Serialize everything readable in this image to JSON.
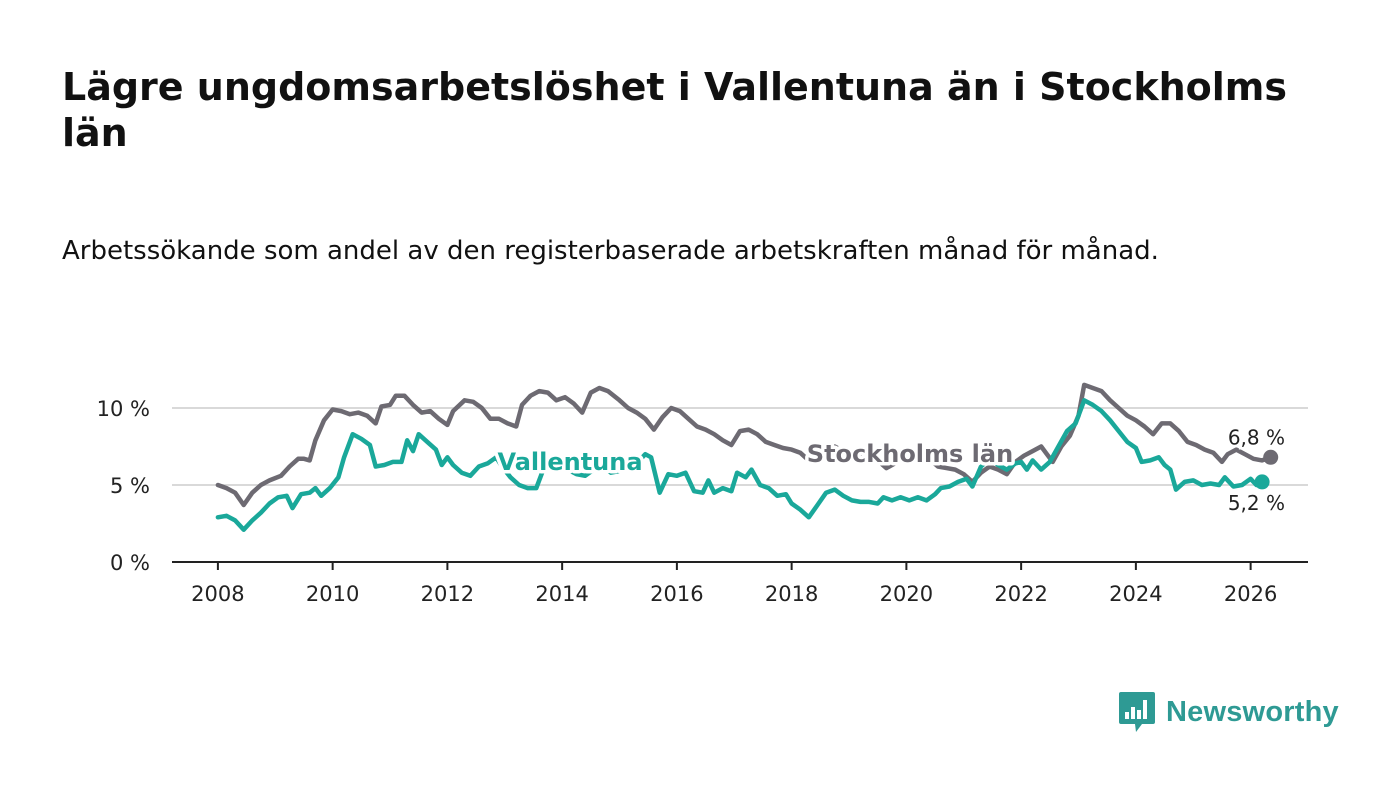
{
  "title": "Lägre ungdomsarbetslöshet i Vallentuna än i Stockholms län",
  "subtitle": "Arbetssökande som andel av den registerbaserade arbetskraften månad för månad.",
  "logo": {
    "text": "Newsworthy",
    "icon": "newsworthy-logo-icon"
  },
  "colors": {
    "vallentuna": "#1aa89a",
    "stockholm": "#6d6a72",
    "grid": "#d9d9d9",
    "axis": "#222222"
  },
  "chart_data": {
    "type": "line",
    "title": "Lägre ungdomsarbetslöshet i Vallentuna än i Stockholms län",
    "xlabel": "",
    "ylabel": "",
    "xlim": [
      2007.2,
      2027.0
    ],
    "ylim": [
      0,
      10
    ],
    "grid": true,
    "x_ticks": [
      2008,
      2010,
      2012,
      2014,
      2016,
      2018,
      2020,
      2022,
      2024,
      2026
    ],
    "x_tick_labels": [
      "2008",
      "2010",
      "2012",
      "2014",
      "2016",
      "2018",
      "2020",
      "2022",
      "2024",
      "2026"
    ],
    "y_ticks": [
      0,
      5,
      10
    ],
    "y_tick_labels": [
      "0 %",
      "5 %",
      "10 %"
    ],
    "series": [
      {
        "name": "Stockholms län",
        "label": "Stockholms län",
        "end_label": "6,8 %",
        "end_value": 6.8,
        "points": [
          [
            2008.0,
            5.0
          ],
          [
            2008.15,
            4.8
          ],
          [
            2008.3,
            4.5
          ],
          [
            2008.45,
            3.7
          ],
          [
            2008.6,
            4.5
          ],
          [
            2008.75,
            5.0
          ],
          [
            2008.9,
            5.3
          ],
          [
            2009.1,
            5.6
          ],
          [
            2009.25,
            6.2
          ],
          [
            2009.4,
            6.7
          ],
          [
            2009.5,
            6.7
          ],
          [
            2009.6,
            6.6
          ],
          [
            2009.7,
            7.9
          ],
          [
            2009.85,
            9.2
          ],
          [
            2010.0,
            9.9
          ],
          [
            2010.15,
            9.8
          ],
          [
            2010.3,
            9.6
          ],
          [
            2010.45,
            9.7
          ],
          [
            2010.6,
            9.5
          ],
          [
            2010.75,
            9.0
          ],
          [
            2010.85,
            10.1
          ],
          [
            2011.0,
            10.2
          ],
          [
            2011.1,
            10.8
          ],
          [
            2011.25,
            10.8
          ],
          [
            2011.4,
            10.2
          ],
          [
            2011.55,
            9.7
          ],
          [
            2011.7,
            9.8
          ],
          [
            2011.85,
            9.3
          ],
          [
            2012.0,
            8.9
          ],
          [
            2012.1,
            9.8
          ],
          [
            2012.3,
            10.5
          ],
          [
            2012.45,
            10.4
          ],
          [
            2012.6,
            10.0
          ],
          [
            2012.75,
            9.3
          ],
          [
            2012.9,
            9.3
          ],
          [
            2013.05,
            9.0
          ],
          [
            2013.2,
            8.8
          ],
          [
            2013.3,
            10.2
          ],
          [
            2013.45,
            10.8
          ],
          [
            2013.6,
            11.1
          ],
          [
            2013.75,
            11.0
          ],
          [
            2013.9,
            10.5
          ],
          [
            2014.05,
            10.7
          ],
          [
            2014.2,
            10.3
          ],
          [
            2014.35,
            9.7
          ],
          [
            2014.5,
            11.0
          ],
          [
            2014.65,
            11.3
          ],
          [
            2014.8,
            11.1
          ],
          [
            2015.0,
            10.5
          ],
          [
            2015.15,
            10.0
          ],
          [
            2015.3,
            9.7
          ],
          [
            2015.45,
            9.3
          ],
          [
            2015.6,
            8.6
          ],
          [
            2015.75,
            9.4
          ],
          [
            2015.9,
            10.0
          ],
          [
            2016.05,
            9.8
          ],
          [
            2016.2,
            9.3
          ],
          [
            2016.35,
            8.8
          ],
          [
            2016.5,
            8.6
          ],
          [
            2016.65,
            8.3
          ],
          [
            2016.8,
            7.9
          ],
          [
            2016.95,
            7.6
          ],
          [
            2017.1,
            8.5
          ],
          [
            2017.25,
            8.6
          ],
          [
            2017.4,
            8.3
          ],
          [
            2017.55,
            7.8
          ],
          [
            2017.7,
            7.6
          ],
          [
            2017.85,
            7.4
          ],
          [
            2018.0,
            7.3
          ],
          [
            2018.15,
            7.1
          ],
          [
            2018.3,
            6.6
          ],
          [
            2018.45,
            7.1
          ],
          [
            2018.6,
            7.5
          ],
          [
            2018.75,
            7.5
          ],
          [
            2018.9,
            7.2
          ],
          [
            2019.05,
            7.0
          ],
          [
            2019.2,
            6.8
          ],
          [
            2019.35,
            6.7
          ],
          [
            2019.5,
            6.6
          ],
          [
            2019.65,
            6.1
          ],
          [
            2019.8,
            6.4
          ],
          [
            2019.95,
            7.0
          ],
          [
            2020.1,
            7.2
          ],
          [
            2020.25,
            6.8
          ],
          [
            2020.4,
            6.7
          ],
          [
            2020.55,
            6.2
          ],
          [
            2020.7,
            6.1
          ],
          [
            2020.85,
            6.0
          ],
          [
            2021.0,
            5.7
          ],
          [
            2021.15,
            5.2
          ],
          [
            2021.3,
            5.8
          ],
          [
            2021.45,
            6.2
          ],
          [
            2021.6,
            6.0
          ],
          [
            2021.75,
            5.7
          ],
          [
            2021.9,
            6.5
          ],
          [
            2022.05,
            6.9
          ],
          [
            2022.2,
            7.2
          ],
          [
            2022.35,
            7.5
          ],
          [
            2022.45,
            7.0
          ],
          [
            2022.55,
            6.5
          ],
          [
            2022.7,
            7.5
          ],
          [
            2022.85,
            8.2
          ],
          [
            2023.0,
            9.5
          ],
          [
            2023.1,
            11.5
          ],
          [
            2023.25,
            11.3
          ],
          [
            2023.4,
            11.1
          ],
          [
            2023.55,
            10.5
          ],
          [
            2023.7,
            10.0
          ],
          [
            2023.85,
            9.5
          ],
          [
            2024.0,
            9.2
          ],
          [
            2024.15,
            8.8
          ],
          [
            2024.3,
            8.3
          ],
          [
            2024.45,
            9.0
          ],
          [
            2024.6,
            9.0
          ],
          [
            2024.75,
            8.5
          ],
          [
            2024.9,
            7.8
          ],
          [
            2025.05,
            7.6
          ],
          [
            2025.2,
            7.3
          ],
          [
            2025.35,
            7.1
          ],
          [
            2025.5,
            6.5
          ],
          [
            2025.6,
            7.0
          ],
          [
            2025.75,
            7.3
          ],
          [
            2025.9,
            7.0
          ],
          [
            2026.05,
            6.7
          ],
          [
            2026.2,
            6.6
          ],
          [
            2026.35,
            6.8
          ]
        ]
      },
      {
        "name": "Vallentuna",
        "label": "Vallentuna",
        "end_label": "5,2 %",
        "end_value": 5.2,
        "points": [
          [
            2008.0,
            2.9
          ],
          [
            2008.15,
            3.0
          ],
          [
            2008.3,
            2.7
          ],
          [
            2008.45,
            2.1
          ],
          [
            2008.6,
            2.7
          ],
          [
            2008.75,
            3.2
          ],
          [
            2008.9,
            3.8
          ],
          [
            2009.05,
            4.2
          ],
          [
            2009.2,
            4.3
          ],
          [
            2009.3,
            3.5
          ],
          [
            2009.45,
            4.4
          ],
          [
            2009.6,
            4.5
          ],
          [
            2009.7,
            4.8
          ],
          [
            2009.8,
            4.3
          ],
          [
            2009.95,
            4.8
          ],
          [
            2010.1,
            5.5
          ],
          [
            2010.2,
            6.8
          ],
          [
            2010.35,
            8.3
          ],
          [
            2010.5,
            8.0
          ],
          [
            2010.65,
            7.6
          ],
          [
            2010.75,
            6.2
          ],
          [
            2010.9,
            6.3
          ],
          [
            2011.05,
            6.5
          ],
          [
            2011.2,
            6.5
          ],
          [
            2011.3,
            7.9
          ],
          [
            2011.4,
            7.2
          ],
          [
            2011.5,
            8.3
          ],
          [
            2011.65,
            7.8
          ],
          [
            2011.8,
            7.3
          ],
          [
            2011.9,
            6.3
          ],
          [
            2012.0,
            6.8
          ],
          [
            2012.1,
            6.3
          ],
          [
            2012.25,
            5.8
          ],
          [
            2012.4,
            5.6
          ],
          [
            2012.55,
            6.2
          ],
          [
            2012.7,
            6.4
          ],
          [
            2012.85,
            6.8
          ],
          [
            2012.95,
            6.2
          ],
          [
            2013.1,
            5.5
          ],
          [
            2013.25,
            5.0
          ],
          [
            2013.4,
            4.8
          ],
          [
            2013.55,
            4.8
          ],
          [
            2013.65,
            5.8
          ],
          [
            2013.8,
            6.5
          ],
          [
            2013.95,
            6.8
          ],
          [
            2014.1,
            6.0
          ],
          [
            2014.25,
            5.7
          ],
          [
            2014.4,
            5.6
          ],
          [
            2014.55,
            6.0
          ],
          [
            2014.7,
            6.2
          ],
          [
            2014.85,
            5.8
          ],
          [
            2015.0,
            5.9
          ],
          [
            2015.15,
            6.2
          ],
          [
            2015.3,
            6.4
          ],
          [
            2015.45,
            7.0
          ],
          [
            2015.55,
            6.8
          ],
          [
            2015.7,
            4.5
          ],
          [
            2015.85,
            5.7
          ],
          [
            2016.0,
            5.6
          ],
          [
            2016.15,
            5.8
          ],
          [
            2016.3,
            4.6
          ],
          [
            2016.45,
            4.5
          ],
          [
            2016.55,
            5.3
          ],
          [
            2016.65,
            4.5
          ],
          [
            2016.8,
            4.8
          ],
          [
            2016.95,
            4.6
          ],
          [
            2017.05,
            5.8
          ],
          [
            2017.2,
            5.5
          ],
          [
            2017.3,
            6.0
          ],
          [
            2017.45,
            5.0
          ],
          [
            2017.6,
            4.8
          ],
          [
            2017.75,
            4.3
          ],
          [
            2017.9,
            4.4
          ],
          [
            2018.0,
            3.8
          ],
          [
            2018.15,
            3.4
          ],
          [
            2018.3,
            2.9
          ],
          [
            2018.45,
            3.7
          ],
          [
            2018.6,
            4.5
          ],
          [
            2018.75,
            4.7
          ],
          [
            2018.9,
            4.3
          ],
          [
            2019.05,
            4.0
          ],
          [
            2019.2,
            3.9
          ],
          [
            2019.35,
            3.9
          ],
          [
            2019.5,
            3.8
          ],
          [
            2019.6,
            4.2
          ],
          [
            2019.75,
            4.0
          ],
          [
            2019.9,
            4.2
          ],
          [
            2020.05,
            4.0
          ],
          [
            2020.2,
            4.2
          ],
          [
            2020.35,
            4.0
          ],
          [
            2020.5,
            4.4
          ],
          [
            2020.6,
            4.8
          ],
          [
            2020.75,
            4.9
          ],
          [
            2020.9,
            5.2
          ],
          [
            2021.05,
            5.4
          ],
          [
            2021.15,
            4.9
          ],
          [
            2021.3,
            6.2
          ],
          [
            2021.45,
            6.7
          ],
          [
            2021.6,
            6.3
          ],
          [
            2021.75,
            6.0
          ],
          [
            2021.9,
            6.4
          ],
          [
            2022.0,
            6.5
          ],
          [
            2022.1,
            6.0
          ],
          [
            2022.2,
            6.6
          ],
          [
            2022.35,
            6.0
          ],
          [
            2022.5,
            6.5
          ],
          [
            2022.65,
            7.5
          ],
          [
            2022.8,
            8.5
          ],
          [
            2022.95,
            9.0
          ],
          [
            2023.1,
            10.5
          ],
          [
            2023.25,
            10.2
          ],
          [
            2023.4,
            9.8
          ],
          [
            2023.55,
            9.2
          ],
          [
            2023.7,
            8.5
          ],
          [
            2023.85,
            7.8
          ],
          [
            2024.0,
            7.4
          ],
          [
            2024.1,
            6.5
          ],
          [
            2024.25,
            6.6
          ],
          [
            2024.4,
            6.8
          ],
          [
            2024.5,
            6.3
          ],
          [
            2024.6,
            6.0
          ],
          [
            2024.7,
            4.7
          ],
          [
            2024.85,
            5.2
          ],
          [
            2025.0,
            5.3
          ],
          [
            2025.15,
            5.0
          ],
          [
            2025.3,
            5.1
          ],
          [
            2025.45,
            5.0
          ],
          [
            2025.55,
            5.5
          ],
          [
            2025.7,
            4.9
          ],
          [
            2025.85,
            5.0
          ],
          [
            2026.0,
            5.4
          ],
          [
            2026.1,
            5.0
          ],
          [
            2026.2,
            5.2
          ]
        ]
      }
    ]
  }
}
